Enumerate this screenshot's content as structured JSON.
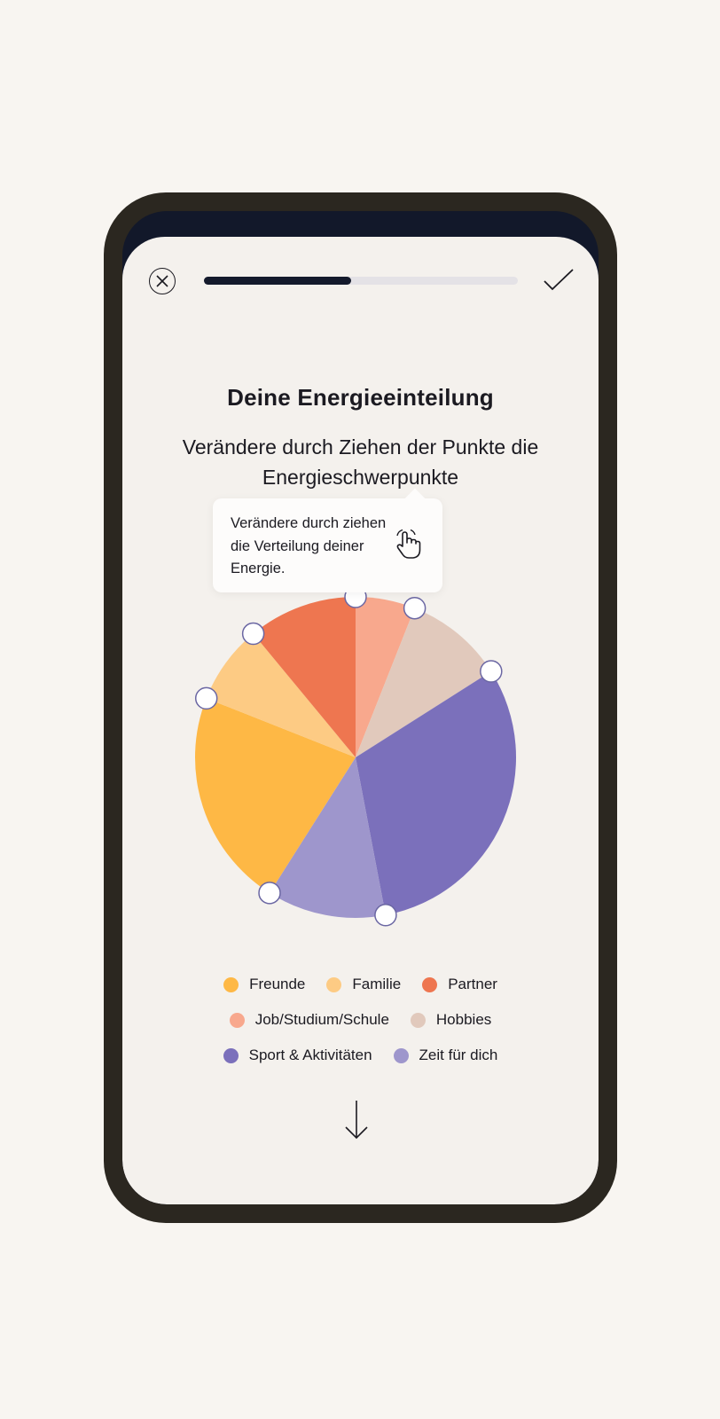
{
  "header": {
    "close_icon": "close-circle-icon",
    "confirm_icon": "checkmark-icon",
    "progress": 0.47
  },
  "title": "Deine Energieeinteilung",
  "subtitle": "Verändere durch Ziehen der Punkte die Energieschwerpunkte",
  "tooltip": {
    "text": "Verändere durch ziehen die Verteilung deiner Energie.",
    "icon": "hand-pointer-icon"
  },
  "colors": {
    "background": "#f8f5f1",
    "app_background": "#f4f1ed",
    "progress_fill": "#141a2c",
    "handle_border": "#6b67a3"
  },
  "chart_data": {
    "type": "pie",
    "slices": [
      {
        "name": "Job/Studium/Schule",
        "value": 6,
        "color": "#f8a88d"
      },
      {
        "name": "Hobbies",
        "value": 10,
        "color": "#e1c9bc"
      },
      {
        "name": "Sport & Aktivitäten",
        "value": 31,
        "color": "#7b70bb"
      },
      {
        "name": "Zeit für dich",
        "value": 12,
        "color": "#9e96cc"
      },
      {
        "name": "Freunde",
        "value": 22,
        "color": "#feb845"
      },
      {
        "name": "Familie",
        "value": 8,
        "color": "#fdcb84"
      },
      {
        "name": "Partner",
        "value": 11,
        "color": "#ee7650"
      }
    ]
  },
  "legend": {
    "rows": [
      [
        {
          "label": "Freunde",
          "color": "#feb845"
        },
        {
          "label": "Familie",
          "color": "#fdcb84"
        },
        {
          "label": "Partner",
          "color": "#ee7650"
        }
      ],
      [
        {
          "label": "Job/Studium/Schule",
          "color": "#f8a88d"
        },
        {
          "label": "Hobbies",
          "color": "#e1c9bc"
        }
      ],
      [
        {
          "label": "Sport & Aktivitäten",
          "color": "#7b70bb"
        },
        {
          "label": "Zeit für dich",
          "color": "#9e96cc"
        }
      ]
    ]
  },
  "footer": {
    "next_icon": "arrow-down-icon"
  }
}
